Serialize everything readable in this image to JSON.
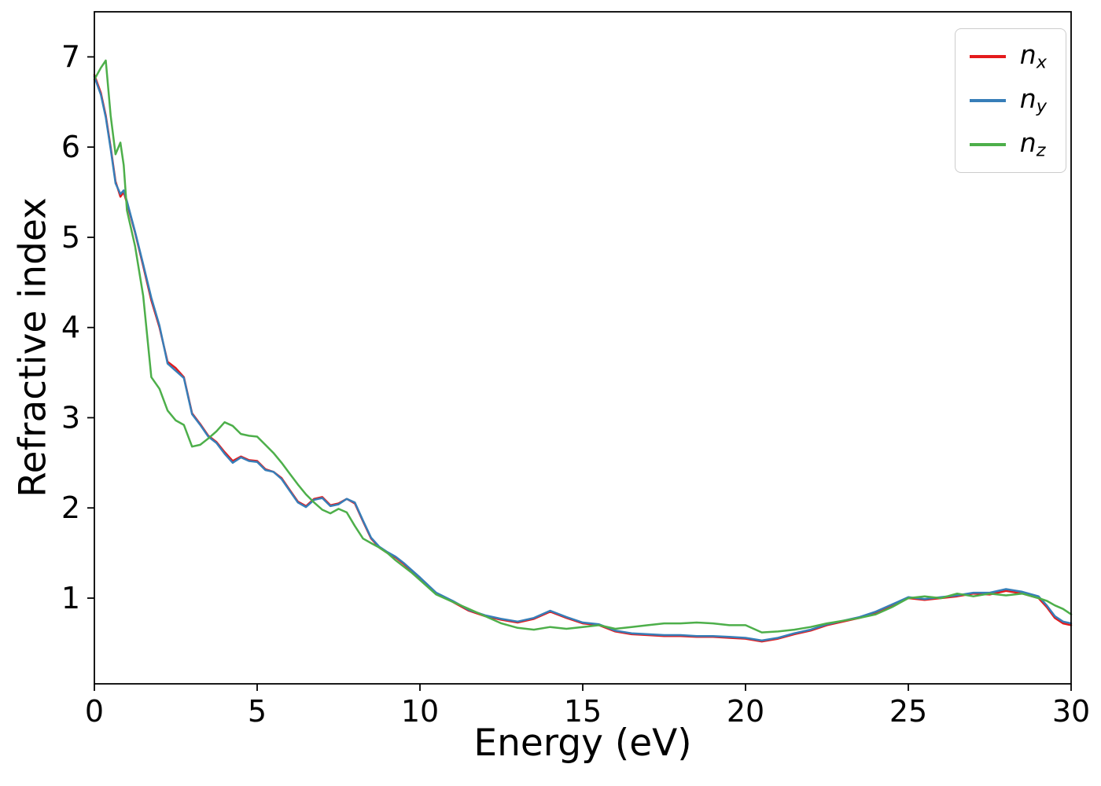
{
  "figure": {
    "background": "#ffffff",
    "axis_color": "#000000",
    "legend_border_color": "#cccccc"
  },
  "chart_data": {
    "type": "line",
    "title": "",
    "xlabel": "Energy (eV)",
    "ylabel": "Refractive index",
    "xlim": [
      0,
      30
    ],
    "ylim": [
      0.05,
      7.5
    ],
    "xticks": [
      0,
      5,
      10,
      15,
      20,
      25,
      30
    ],
    "yticks": [
      1,
      2,
      3,
      4,
      5,
      6,
      7
    ],
    "grid": false,
    "legend_position": "upper right",
    "x": [
      0,
      0.2,
      0.35,
      0.5,
      0.65,
      0.8,
      0.9,
      1.0,
      1.25,
      1.5,
      1.75,
      2.0,
      2.25,
      2.5,
      2.75,
      3.0,
      3.25,
      3.5,
      3.75,
      4.0,
      4.25,
      4.5,
      4.75,
      5.0,
      5.25,
      5.5,
      5.75,
      6.0,
      6.25,
      6.5,
      6.75,
      7.0,
      7.25,
      7.5,
      7.75,
      8.0,
      8.25,
      8.5,
      8.75,
      9.0,
      9.25,
      9.5,
      9.75,
      10.0,
      10.5,
      11.0,
      11.5,
      12.0,
      12.5,
      13.0,
      13.5,
      14.0,
      14.5,
      15.0,
      15.5,
      16.0,
      16.5,
      17.0,
      17.5,
      18.0,
      18.5,
      19.0,
      19.5,
      20.0,
      20.5,
      21.0,
      21.5,
      22.0,
      22.5,
      23.0,
      23.5,
      24.0,
      24.5,
      25.0,
      25.5,
      26.0,
      26.5,
      27.0,
      27.5,
      28.0,
      28.5,
      29.0,
      29.25,
      29.5,
      29.75,
      30.0
    ],
    "series": [
      {
        "name": "n_x",
        "label_base": "n",
        "label_sub": "x",
        "color": "#e41a1c",
        "values": [
          6.8,
          6.6,
          6.35,
          6.0,
          5.62,
          5.45,
          5.5,
          5.38,
          5.05,
          4.68,
          4.3,
          4.0,
          3.62,
          3.55,
          3.45,
          3.05,
          2.93,
          2.8,
          2.73,
          2.62,
          2.52,
          2.57,
          2.53,
          2.52,
          2.43,
          2.4,
          2.33,
          2.2,
          2.07,
          2.02,
          2.1,
          2.12,
          2.03,
          2.05,
          2.1,
          2.05,
          1.85,
          1.66,
          1.56,
          1.5,
          1.45,
          1.38,
          1.3,
          1.22,
          1.05,
          0.96,
          0.86,
          0.8,
          0.76,
          0.73,
          0.77,
          0.85,
          0.78,
          0.72,
          0.7,
          0.63,
          0.6,
          0.59,
          0.58,
          0.58,
          0.57,
          0.57,
          0.56,
          0.55,
          0.52,
          0.55,
          0.6,
          0.64,
          0.7,
          0.74,
          0.78,
          0.84,
          0.92,
          1.0,
          0.98,
          1.0,
          1.02,
          1.05,
          1.04,
          1.08,
          1.05,
          1.0,
          0.9,
          0.78,
          0.72,
          0.7
        ]
      },
      {
        "name": "n_y",
        "label_base": "n",
        "label_sub": "y",
        "color": "#377eb8",
        "values": [
          6.78,
          6.58,
          6.33,
          5.98,
          5.6,
          5.48,
          5.52,
          5.4,
          5.06,
          4.7,
          4.33,
          4.02,
          3.6,
          3.52,
          3.44,
          3.04,
          2.92,
          2.79,
          2.72,
          2.6,
          2.5,
          2.56,
          2.52,
          2.51,
          2.42,
          2.4,
          2.32,
          2.19,
          2.06,
          2.01,
          2.09,
          2.11,
          2.02,
          2.04,
          2.1,
          2.06,
          1.86,
          1.67,
          1.57,
          1.51,
          1.46,
          1.39,
          1.31,
          1.23,
          1.06,
          0.97,
          0.87,
          0.81,
          0.77,
          0.74,
          0.78,
          0.86,
          0.79,
          0.73,
          0.71,
          0.64,
          0.61,
          0.6,
          0.59,
          0.59,
          0.58,
          0.58,
          0.57,
          0.56,
          0.53,
          0.56,
          0.61,
          0.65,
          0.71,
          0.75,
          0.79,
          0.85,
          0.93,
          1.01,
          0.99,
          1.01,
          1.03,
          1.06,
          1.06,
          1.1,
          1.07,
          1.02,
          0.92,
          0.8,
          0.74,
          0.72
        ]
      },
      {
        "name": "n_z",
        "label_base": "n",
        "label_sub": "z",
        "color": "#4daf4a",
        "values": [
          6.75,
          6.88,
          6.96,
          6.35,
          5.92,
          6.05,
          5.8,
          5.3,
          4.9,
          4.35,
          3.45,
          3.32,
          3.08,
          2.97,
          2.92,
          2.68,
          2.7,
          2.77,
          2.85,
          2.95,
          2.91,
          2.82,
          2.8,
          2.79,
          2.7,
          2.61,
          2.5,
          2.38,
          2.26,
          2.15,
          2.06,
          1.98,
          1.94,
          1.99,
          1.95,
          1.8,
          1.66,
          1.61,
          1.56,
          1.5,
          1.42,
          1.35,
          1.28,
          1.2,
          1.04,
          0.96,
          0.88,
          0.8,
          0.72,
          0.67,
          0.65,
          0.68,
          0.66,
          0.68,
          0.7,
          0.66,
          0.68,
          0.7,
          0.72,
          0.72,
          0.73,
          0.72,
          0.7,
          0.7,
          0.62,
          0.63,
          0.65,
          0.68,
          0.72,
          0.75,
          0.78,
          0.82,
          0.9,
          1.0,
          1.02,
          1.0,
          1.05,
          1.02,
          1.05,
          1.03,
          1.05,
          1.0,
          0.97,
          0.92,
          0.88,
          0.82
        ]
      }
    ]
  }
}
